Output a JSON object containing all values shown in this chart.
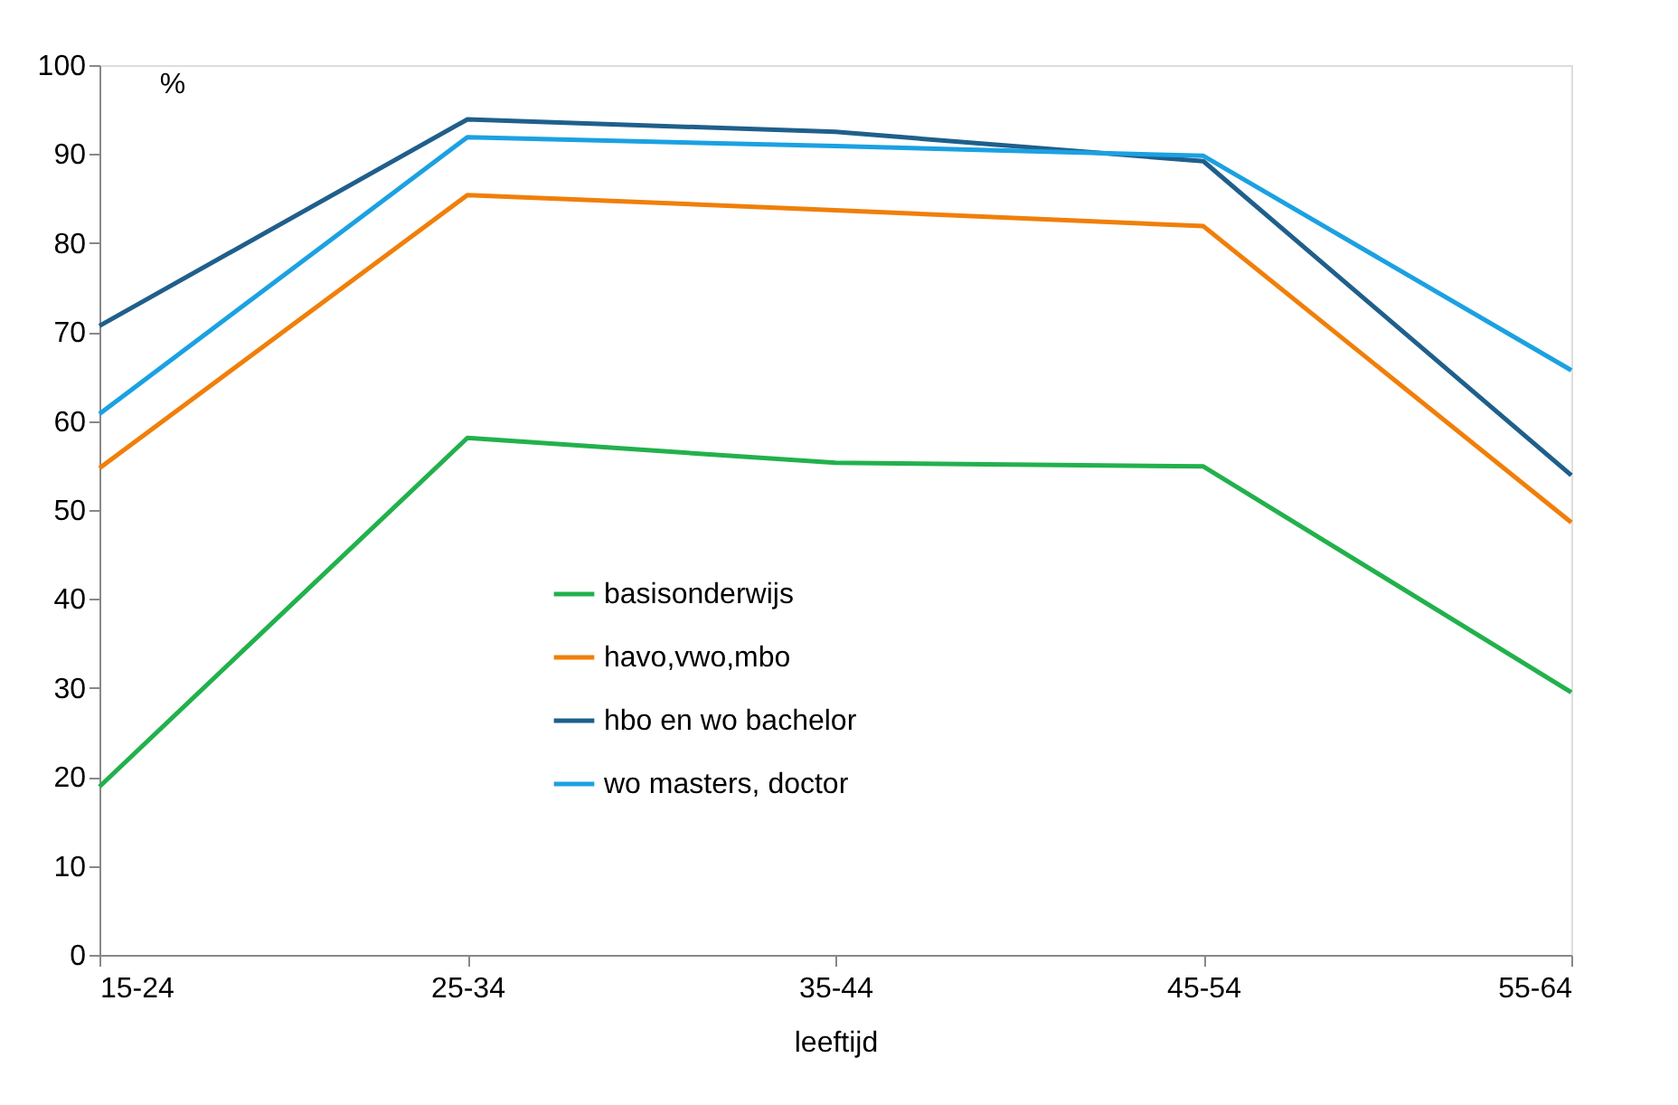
{
  "chart_data": {
    "type": "line",
    "xlabel": "leeftijd",
    "ylabel": "%",
    "categories": [
      "15-24",
      "25-34",
      "35-44",
      "45-54",
      "55-64"
    ],
    "series": [
      {
        "name": "basisonderwijs",
        "color": "#22b14c",
        "values": [
          18.9,
          58.1,
          55.3,
          54.9,
          29.5
        ]
      },
      {
        "name": "havo,vwo,mbo",
        "color": "#f07f09",
        "values": [
          54.7,
          85.4,
          83.7,
          81.9,
          48.6
        ]
      },
      {
        "name": "hbo en wo bachelor",
        "color": "#1f5f8b",
        "values": [
          70.7,
          93.9,
          92.5,
          89.2,
          53.9
        ]
      },
      {
        "name": "wo masters, doctor",
        "color": "#1ba1e2",
        "values": [
          60.8,
          91.9,
          90.9,
          89.8,
          65.7
        ]
      }
    ],
    "ylim": [
      0,
      100
    ],
    "yticks": [
      0,
      10,
      20,
      30,
      40,
      50,
      60,
      70,
      80,
      90,
      100
    ],
    "grid": false,
    "legend": "bottom",
    "marker": "none",
    "line_style": "solid"
  }
}
